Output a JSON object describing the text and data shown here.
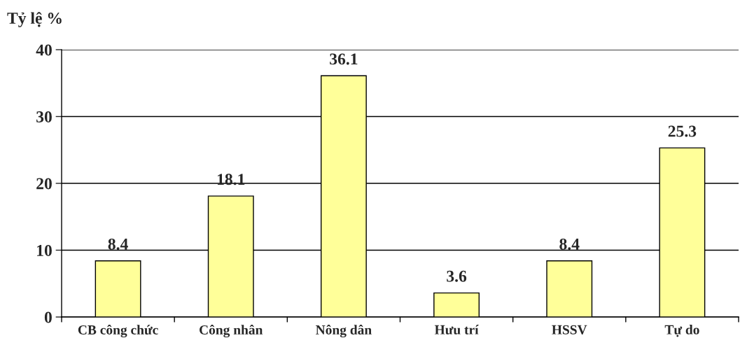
{
  "chart_data": {
    "type": "bar",
    "ylabel": "Tỷ lệ %",
    "categories": [
      "CB công chức",
      "Công nhân",
      "Nông dân",
      "Hưu trí",
      "HSSV",
      "Tự do"
    ],
    "values": [
      8.4,
      18.1,
      36.1,
      3.6,
      8.4,
      25.3
    ],
    "color": "#ffff99",
    "ylim": [
      0,
      40
    ],
    "yticks": [
      0,
      10,
      20,
      30,
      40
    ],
    "grid": "y",
    "data_labels": true
  }
}
